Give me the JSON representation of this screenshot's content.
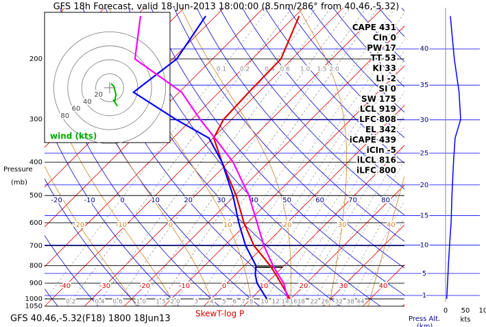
{
  "chart_data": {
    "type": "skewt",
    "title": "GFS 18h Forecast, valid 18-Jun-2013 18:00:00 (8.5nm/286° from 40.46,-5.32)",
    "ylabel": "Pressure",
    "yunit": "(mb)",
    "xlabel": "SkewT-log P",
    "footer": "GFS 40.46,-5.32(F18) 1800 18Jun13",
    "yscale": "log",
    "ylim": [
      1050,
      142
    ],
    "yticks": [
      1050,
      1000,
      900,
      800,
      700,
      600,
      500,
      400,
      300,
      200
    ],
    "pressure": [
      1000,
      900,
      850,
      800,
      700,
      600,
      500,
      400,
      340,
      300,
      250,
      200,
      150
    ],
    "series": [
      {
        "color": "#e00000",
        "values": [
          19.8,
          13.6,
          10.2,
          6.5,
          -2.6,
          -10.9,
          -19.7,
          -31.6,
          -39.8,
          -42,
          -42.5,
          -42.8,
          -49
        ]
      },
      {
        "color": "#0000ff",
        "values": [
          14,
          7.6,
          5,
          2.9,
          -4.7,
          -12.2,
          -20.5,
          -31.6,
          -41,
          -54,
          -71.5,
          -69,
          -72.5
        ]
      },
      {
        "color": "#ff00ff",
        "values": [
          19.3,
          14.3,
          10.8,
          7.2,
          -0.1,
          -7.6,
          -16.5,
          -28.8,
          -39.5,
          -47.9,
          -59.4,
          -79.5,
          -88.9
        ]
      }
    ],
    "isotherms": {
      "color": "#e00000",
      "values": [
        -40,
        -30,
        -20,
        -10,
        0,
        10,
        20,
        30,
        40
      ]
    },
    "dry_adiabats": {
      "color": "#0000cc",
      "values": [
        -20,
        -10,
        0,
        10,
        20,
        30,
        40,
        50,
        60,
        70,
        80
      ]
    },
    "moist_adiabats": {
      "color": "#d08020",
      "values": [
        -20,
        -10,
        0,
        10,
        20,
        30,
        40
      ]
    },
    "mixing_ratio": {
      "color": "#999999",
      "bottom": [
        0.2,
        0.4,
        0.6,
        {
          "value": 1,
          "label": "1.0"
        },
        1.5,
        {
          "value": 2,
          "label": "2.0"
        },
        3,
        4,
        5,
        6,
        7,
        8,
        10,
        12,
        14,
        16,
        18,
        22,
        26,
        32,
        38,
        44
      ],
      "top": [
        0.1,
        0.2,
        0.4,
        0.6,
        {
          "value": 1,
          "label": "1.0"
        },
        1.5,
        {
          "value": 2,
          "label": "2.0"
        }
      ]
    },
    "indices": [
      {
        "label": "CAPE",
        "value": 431
      },
      {
        "label": "CIn",
        "value": 0
      },
      {
        "label": "PW",
        "value": 17
      },
      {
        "label": "TT",
        "value": 53
      },
      {
        "label": "KI",
        "value": 33
      },
      {
        "label": "LI",
        "value": -2
      },
      {
        "label": "SI",
        "value": 0
      },
      {
        "label": "SW",
        "value": 175
      },
      {
        "label": "LCL",
        "value": 919
      },
      {
        "label": "LFC",
        "value": 808
      },
      {
        "label": "EL",
        "value": 342
      },
      {
        "label": "iCAPE",
        "value": 439
      },
      {
        "label": "iCIn",
        "value": -5
      },
      {
        "label": "iLCL",
        "value": 816
      },
      {
        "label": "iLFC",
        "value": 800
      }
    ],
    "hodograph": {
      "title": "wind (kts)",
      "color": "#00aa00",
      "rings": [
        20,
        40,
        60,
        80
      ],
      "u": [
        2,
        6,
        9,
        7,
        11,
        5
      ],
      "v": [
        6,
        2,
        -10,
        -20,
        -26,
        -17
      ]
    },
    "wind_speed": {
      "color": "#0000ff",
      "xlim": [
        0,
        100
      ],
      "xticks": [
        0,
        50,
        100
      ],
      "xlabel": "kts",
      "values": [
        3,
        5,
        6,
        7,
        10,
        14,
        16,
        20,
        24,
        38,
        34,
        22,
        12
      ]
    },
    "altitude": {
      "label": "Press Alt.",
      "unit": "(km)",
      "color": "#0000ff",
      "ticks": [
        1,
        5,
        10,
        15,
        20,
        25,
        30,
        35,
        40
      ]
    }
  }
}
